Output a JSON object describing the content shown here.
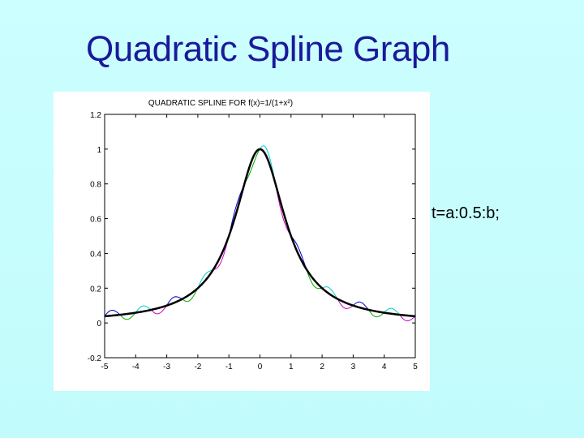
{
  "slide": {
    "title": "Quadratic Spline Graph",
    "side_note": "t=a:0.5:b;"
  },
  "chart_data": {
    "type": "line",
    "title": "QUADRATIC SPLINE FOR f(x)=1/(1+x²)",
    "xlabel": "",
    "ylabel": "",
    "xlim": [
      -5,
      5
    ],
    "ylim": [
      -0.2,
      1.2
    ],
    "x_ticks": [
      "-5",
      "-4",
      "-3",
      "-2",
      "-1",
      "0",
      "1",
      "2",
      "3",
      "4",
      "5"
    ],
    "y_ticks": [
      "-0.2",
      "0",
      "0.2",
      "0.4",
      "0.6",
      "0.8",
      "1",
      "1.2"
    ],
    "grid": false,
    "x": [
      -5,
      -4.5,
      -4,
      -3.5,
      -3,
      -2.5,
      -2,
      -1.5,
      -1,
      -0.5,
      0,
      0.5,
      1,
      1.5,
      2,
      2.5,
      3,
      3.5,
      4,
      4.5,
      5
    ],
    "series": [
      {
        "role": "function",
        "color": "#000000",
        "values": [
          0.038,
          0.047,
          0.059,
          0.075,
          0.1,
          0.138,
          0.2,
          0.308,
          0.5,
          0.8,
          1.0,
          0.8,
          0.5,
          0.308,
          0.2,
          0.138,
          0.1,
          0.075,
          0.059,
          0.047,
          0.038
        ]
      }
    ],
    "spline_piece_colors": [
      "#0000cc",
      "#00aa00",
      "#00cccc",
      "#cc00cc"
    ]
  }
}
